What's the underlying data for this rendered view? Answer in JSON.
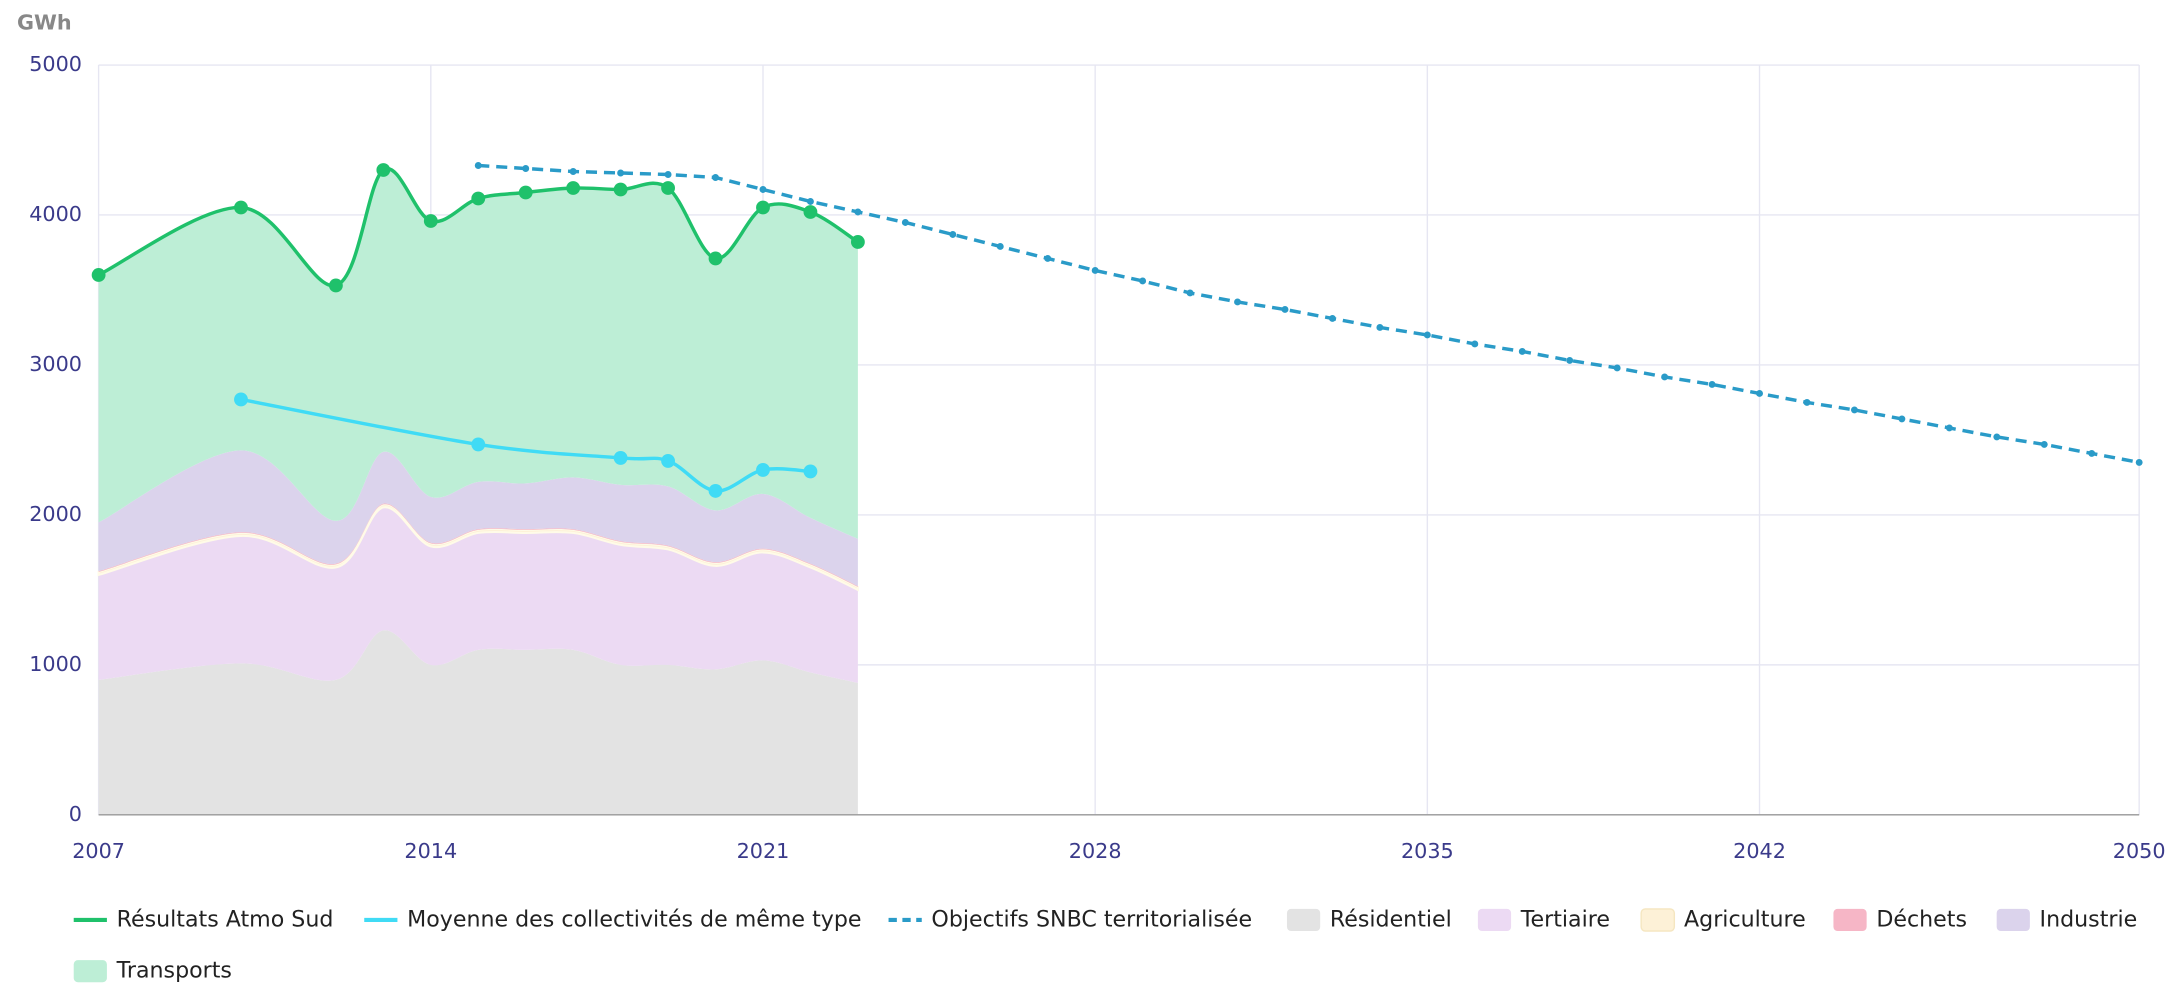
{
  "chart_data": {
    "type": "area_line",
    "y_label": "GWh",
    "xlim": [
      2007,
      2050
    ],
    "xticks": [
      2007,
      2014,
      2021,
      2028,
      2035,
      2042,
      2050
    ],
    "ylim": [
      0,
      5000
    ],
    "yticks": [
      0,
      1000,
      2000,
      3000,
      4000,
      5000
    ],
    "grid": true,
    "x": [
      2007,
      2010,
      2012,
      2013,
      2014,
      2015,
      2016,
      2017,
      2018,
      2019,
      2020,
      2021,
      2022,
      2023
    ],
    "areas": [
      {
        "name": "Résidentiel",
        "color": "#e3e3e3",
        "values": [
          900,
          1010,
          900,
          1230,
          1000,
          1100,
          1100,
          1100,
          1000,
          1000,
          970,
          1030,
          950,
          880
        ]
      },
      {
        "name": "Tertiaire",
        "color": "#ecdaf3",
        "values": [
          700,
          850,
          750,
          820,
          790,
          780,
          780,
          780,
          800,
          770,
          690,
          720,
          700,
          620
        ]
      },
      {
        "name": "Agriculture",
        "color": "#fdf1d7",
        "values": [
          20,
          20,
          20,
          20,
          20,
          20,
          20,
          20,
          20,
          20,
          20,
          20,
          20,
          20
        ]
      },
      {
        "name": "Déchets",
        "color": "#f6b6c6",
        "values": [
          5,
          5,
          5,
          5,
          5,
          5,
          5,
          5,
          5,
          5,
          5,
          5,
          5,
          5
        ]
      },
      {
        "name": "Industrie",
        "color": "#dbd3ec",
        "values": [
          325,
          545,
          285,
          345,
          305,
          315,
          305,
          345,
          375,
          395,
          345,
          365,
          305,
          315
        ]
      },
      {
        "name": "Transports",
        "color": "#bdeed6",
        "values": [
          1650,
          1620,
          1570,
          1880,
          1840,
          1890,
          1940,
          1930,
          1970,
          1990,
          1680,
          1910,
          2040,
          1980
        ]
      }
    ],
    "series": [
      {
        "name": "Résultats Atmo Sud",
        "color": "#1fc16b",
        "dashed": false,
        "marker": 5,
        "x": [
          2007,
          2010,
          2012,
          2013,
          2014,
          2015,
          2016,
          2017,
          2018,
          2019,
          2020,
          2021,
          2022,
          2023
        ],
        "values": [
          3600,
          4050,
          3530,
          4300,
          3960,
          4110,
          4150,
          4180,
          4170,
          4180,
          3710,
          4050,
          4020,
          3820
        ]
      },
      {
        "name": "Moyenne des collectivités de même type",
        "color": "#40dbf5",
        "dashed": false,
        "marker": 5,
        "x": [
          2010,
          2015,
          2018,
          2019,
          2020,
          2021,
          2022
        ],
        "values": [
          2770,
          2470,
          2380,
          2360,
          2160,
          2300,
          2290
        ]
      },
      {
        "name": "Objectifs SNBC territorialisée",
        "color": "#2a9bc8",
        "dashed": true,
        "marker": 2.5,
        "x": [
          2015,
          2016,
          2017,
          2018,
          2019,
          2020,
          2021,
          2022,
          2023,
          2024,
          2025,
          2026,
          2027,
          2028,
          2029,
          2030,
          2031,
          2032,
          2033,
          2034,
          2035,
          2036,
          2037,
          2038,
          2039,
          2040,
          2041,
          2042,
          2043,
          2044,
          2045,
          2046,
          2047,
          2048,
          2049,
          2050
        ],
        "values": [
          4330,
          4310,
          4290,
          4280,
          4270,
          4250,
          4170,
          4090,
          4020,
          3950,
          3870,
          3790,
          3710,
          3630,
          3560,
          3480,
          3420,
          3370,
          3310,
          3250,
          3200,
          3140,
          3090,
          3030,
          2980,
          2920,
          2870,
          2810,
          2750,
          2700,
          2640,
          2580,
          2520,
          2470,
          2410,
          2350
        ]
      }
    ]
  }
}
